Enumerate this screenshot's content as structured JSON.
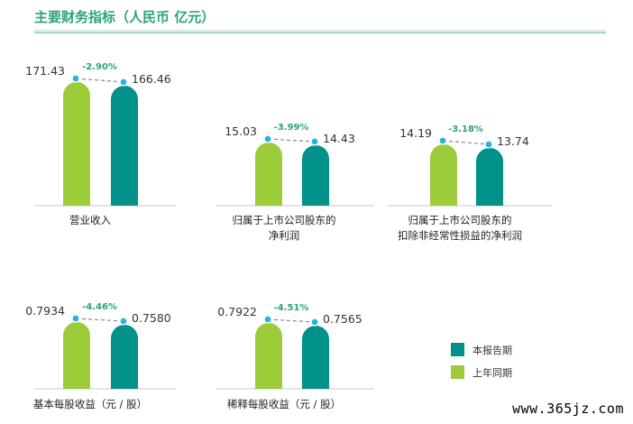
{
  "title": "主要财务指标（人民币 亿元）",
  "colors": {
    "current": "#00918a",
    "previous": "#9ccc3a",
    "change": "#2aa37a",
    "dot": "#2ab3e0"
  },
  "legend": [
    {
      "label": "本报告期",
      "color": "#00918a"
    },
    {
      "label": "上年同期",
      "color": "#9ccc3a"
    }
  ],
  "watermark": "www.365jz.com",
  "chart_data": [
    {
      "type": "bar",
      "category": [
        "营业收入"
      ],
      "series": [
        {
          "name": "上年同期",
          "value": 171.43,
          "label": "171.43"
        },
        {
          "name": "本报告期",
          "value": 166.46,
          "label": "166.46"
        }
      ],
      "change": "-2.90%"
    },
    {
      "type": "bar",
      "category": [
        "归属于上市公司股东的",
        "净利润"
      ],
      "series": [
        {
          "name": "上年同期",
          "value": 15.03,
          "label": "15.03"
        },
        {
          "name": "本报告期",
          "value": 14.43,
          "label": "14.43"
        }
      ],
      "change": "-3.99%"
    },
    {
      "type": "bar",
      "category": [
        "归属于上市公司股东的",
        "扣除非经常性损益的净利润"
      ],
      "series": [
        {
          "name": "上年同期",
          "value": 14.19,
          "label": "14.19"
        },
        {
          "name": "本报告期",
          "value": 13.74,
          "label": "13.74"
        }
      ],
      "change": "-3.18%"
    },
    {
      "type": "bar",
      "category": [
        "基本每股收益（元 / 股）"
      ],
      "series": [
        {
          "name": "上年同期",
          "value": 0.7934,
          "label": "0.7934"
        },
        {
          "name": "本报告期",
          "value": 0.758,
          "label": "0.7580"
        }
      ],
      "change": "-4.46%"
    },
    {
      "type": "bar",
      "category": [
        "稀释每股收益（元 / 股）"
      ],
      "series": [
        {
          "name": "上年同期",
          "value": 0.7922,
          "label": "0.7922"
        },
        {
          "name": "本报告期",
          "value": 0.7565,
          "label": "0.7565"
        }
      ],
      "change": "-4.51%"
    }
  ]
}
